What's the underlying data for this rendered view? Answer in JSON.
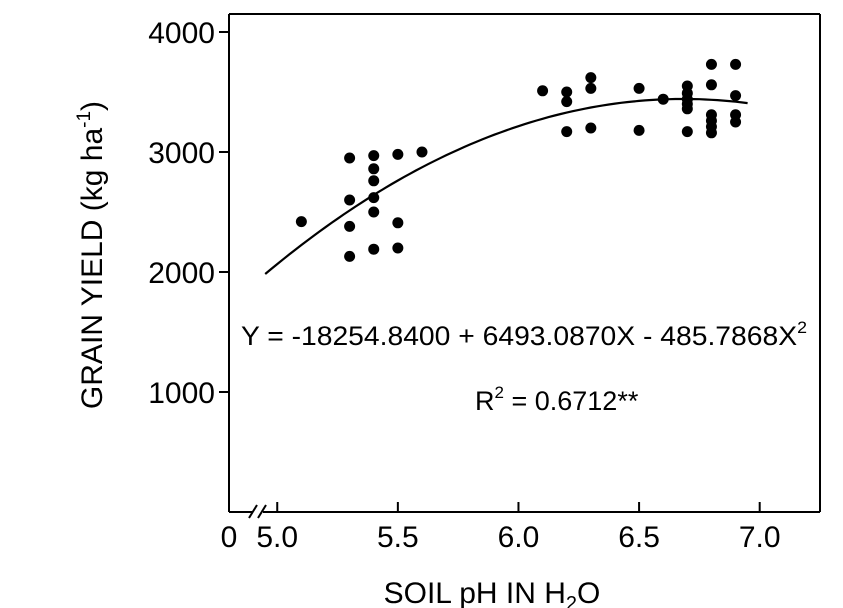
{
  "chart_data": {
    "type": "scatter",
    "title": "",
    "xlabel": "SOIL pH IN H",
    "xlabel_sub": "2",
    "xlabel_tail": "O",
    "ylabel": "GRAIN YIELD (kg ha",
    "ylabel_sup": "-1",
    "ylabel_tail": ")",
    "origin_label": "0",
    "xlim": [
      4.8,
      7.25
    ],
    "ylim": [
      0,
      4000
    ],
    "x_ticks": [
      5.0,
      5.5,
      6.0,
      6.5,
      7.0
    ],
    "x_tick_labels": [
      "5.0",
      "5.5",
      "6.0",
      "6.5",
      "7.0"
    ],
    "y_ticks": [
      1000,
      2000,
      3000,
      4000
    ],
    "y_tick_labels": [
      "1000",
      "2000",
      "3000",
      "4000"
    ],
    "axis_break": true,
    "grid": false,
    "series": [
      {
        "points": [
          [
            5.1,
            2420
          ],
          [
            5.3,
            2950
          ],
          [
            5.3,
            2600
          ],
          [
            5.3,
            2380
          ],
          [
            5.3,
            2130
          ],
          [
            5.4,
            2970
          ],
          [
            5.4,
            2860
          ],
          [
            5.4,
            2760
          ],
          [
            5.4,
            2620
          ],
          [
            5.4,
            2500
          ],
          [
            5.4,
            2190
          ],
          [
            5.5,
            2980
          ],
          [
            5.5,
            2410
          ],
          [
            5.5,
            2200
          ],
          [
            5.6,
            3000
          ],
          [
            6.1,
            3510
          ],
          [
            6.2,
            3500
          ],
          [
            6.2,
            3420
          ],
          [
            6.2,
            3170
          ],
          [
            6.3,
            3620
          ],
          [
            6.3,
            3530
          ],
          [
            6.3,
            3200
          ],
          [
            6.5,
            3530
          ],
          [
            6.5,
            3180
          ],
          [
            6.6,
            3440
          ],
          [
            6.7,
            3550
          ],
          [
            6.7,
            3490
          ],
          [
            6.7,
            3440
          ],
          [
            6.7,
            3400
          ],
          [
            6.7,
            3360
          ],
          [
            6.7,
            3170
          ],
          [
            6.8,
            3730
          ],
          [
            6.8,
            3560
          ],
          [
            6.8,
            3310
          ],
          [
            6.8,
            3260
          ],
          [
            6.8,
            3210
          ],
          [
            6.8,
            3160
          ],
          [
            6.9,
            3730
          ],
          [
            6.9,
            3470
          ],
          [
            6.9,
            3310
          ],
          [
            6.9,
            3250
          ]
        ]
      }
    ],
    "fit": {
      "type": "quadratic",
      "coefficients": [
        -18254.84,
        6493.087,
        -485.7868
      ],
      "x_range": [
        4.95,
        6.95
      ]
    },
    "equation_text": "Y = -18254.8400 + 6493.0870X - 485.7868X",
    "equation_sup": "2",
    "r2_label": "R",
    "r2_sup": "2",
    "r2_text": " = 0.6712**"
  }
}
